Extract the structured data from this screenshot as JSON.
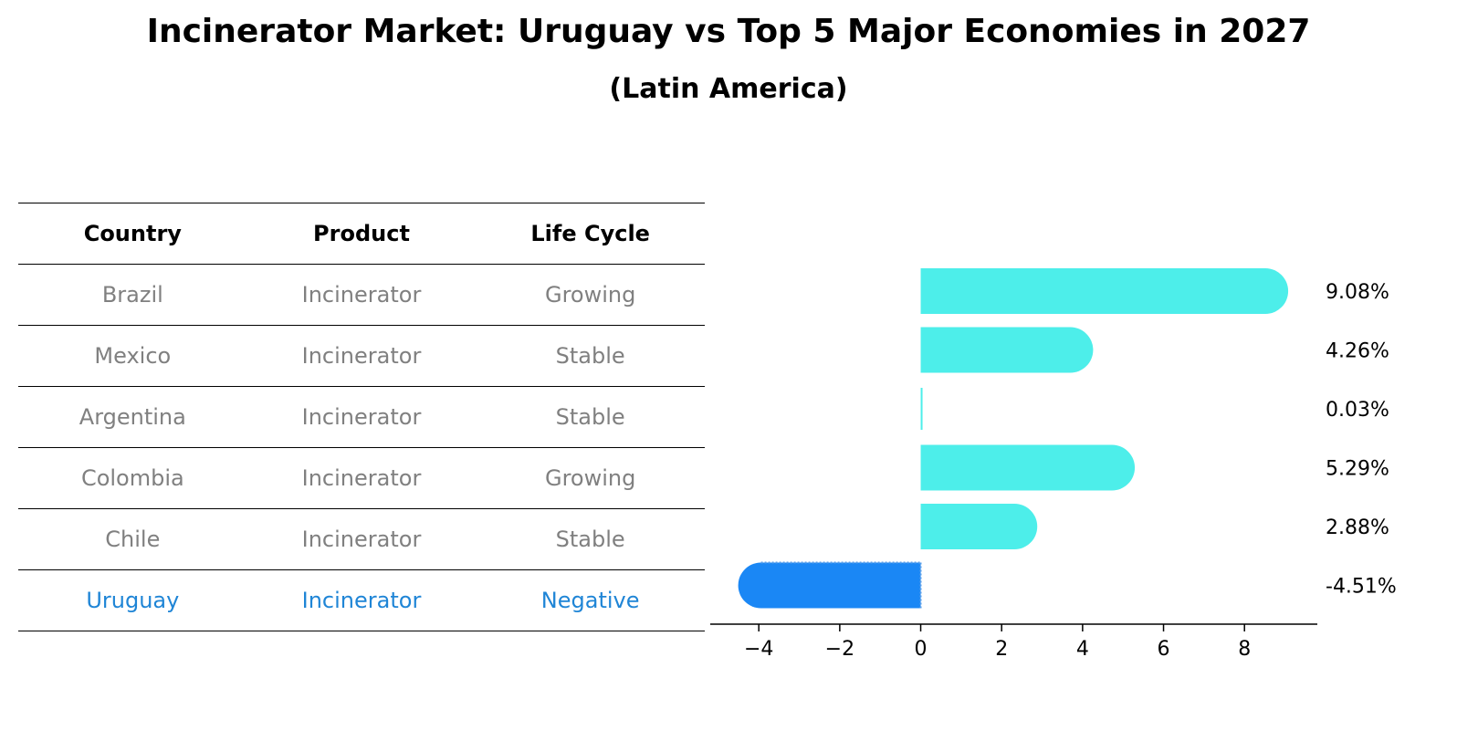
{
  "title": "Incinerator Market: Uruguay vs Top 5 Major Economies in 2027",
  "subtitle": "(Latin America)",
  "table": {
    "headers": [
      "Country",
      "Product",
      "Life Cycle"
    ],
    "rows": [
      [
        "Brazil",
        "Incinerator",
        "Growing"
      ],
      [
        "Mexico",
        "Incinerator",
        "Stable"
      ],
      [
        "Argentina",
        "Incinerator",
        "Stable"
      ],
      [
        "Colombia",
        "Incinerator",
        "Growing"
      ],
      [
        "Chile",
        "Incinerator",
        "Stable"
      ],
      [
        "Uruguay",
        "Incinerator",
        "Negative"
      ]
    ],
    "highlight_row": 5,
    "colors": {
      "normal_text": "#808080",
      "highlight_text": "#1f85d6",
      "header_text": "#000000"
    }
  },
  "chart_data": {
    "type": "bar",
    "orientation": "horizontal",
    "categories": [
      "Brazil",
      "Mexico",
      "Argentina",
      "Colombia",
      "Chile",
      "Uruguay"
    ],
    "values": [
      9.08,
      4.26,
      0.03,
      5.29,
      2.88,
      -4.51
    ],
    "labels": [
      "9.08%",
      "4.26%",
      "0.03%",
      "5.29%",
      "2.88%",
      "-4.51%"
    ],
    "xlim": [
      -5.2,
      9.8
    ],
    "xticks": [
      -4,
      -2,
      0,
      2,
      4,
      6,
      8
    ],
    "xtick_labels": [
      "−4",
      "−2",
      "0",
      "2",
      "4",
      "6",
      "8"
    ],
    "colors": {
      "positive": "#4deeea",
      "negative": "#1a87f5"
    },
    "highlight_index": 5,
    "grid": false
  }
}
